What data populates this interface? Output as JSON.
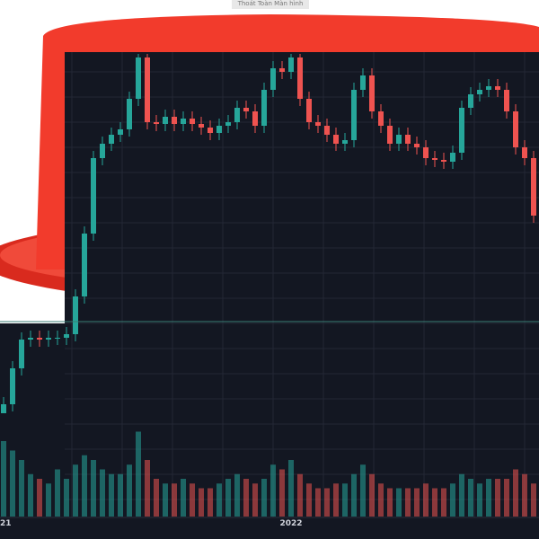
{
  "caption": "Thoát Toàn Màn hình",
  "chart_data": {
    "type": "candlestick",
    "categories": [
      "21",
      null,
      null,
      null,
      null,
      null,
      null,
      null,
      null,
      null,
      null,
      null,
      null,
      null,
      null,
      null,
      null,
      null,
      null,
      null,
      null,
      null,
      null,
      null,
      null,
      null,
      null,
      null,
      null,
      null,
      null,
      null,
      "2022",
      null,
      null,
      null,
      null,
      null,
      null,
      null,
      null,
      null,
      null,
      null,
      null,
      null,
      null,
      null,
      null,
      null,
      null,
      null,
      null,
      null,
      null,
      null,
      null,
      null,
      null,
      null
    ],
    "open": [
      0,
      2.5,
      12.5,
      20.5,
      21,
      20.5,
      21,
      21,
      22,
      32.5,
      50,
      71,
      75,
      77.5,
      79,
      87.5,
      99,
      81,
      80.5,
      82.5,
      80.5,
      82,
      80.5,
      79.5,
      78,
      80,
      81,
      85,
      84,
      80,
      90,
      96,
      95,
      99,
      87.5,
      81,
      80,
      77.5,
      75,
      76,
      90,
      94,
      84,
      80,
      75,
      77.5,
      75,
      74,
      71,
      70.5,
      70,
      72.5,
      85,
      88.75,
      90,
      91,
      90,
      84,
      74,
      71
    ],
    "high": [
      4.5,
      14.5,
      22.5,
      23,
      23,
      23,
      23,
      24,
      34.5,
      52,
      73,
      77,
      79.5,
      81,
      89.5,
      100,
      100,
      83,
      84.5,
      84.5,
      84,
      84,
      82.5,
      81.5,
      82,
      83,
      87,
      87,
      86,
      92,
      98,
      98,
      100,
      100,
      89.5,
      83,
      82,
      79.5,
      78,
      92,
      96,
      96,
      86,
      82,
      79.5,
      79.5,
      77,
      76,
      73,
      72.5,
      74.5,
      87,
      90.75,
      92,
      93,
      93,
      92,
      86,
      76,
      73
    ],
    "low": [
      0,
      0.5,
      10.5,
      18.5,
      18.5,
      18.5,
      19,
      19,
      20,
      30.5,
      48,
      69,
      73,
      75.5,
      77,
      85.5,
      79,
      78.5,
      78.5,
      78.5,
      78.5,
      78.5,
      77.5,
      76,
      76,
      78,
      79,
      82,
      78,
      78,
      88,
      93,
      93,
      85.5,
      79,
      78,
      75.5,
      73,
      73,
      74,
      88,
      82,
      78,
      73,
      73,
      73,
      72,
      69,
      68.5,
      68,
      68,
      70.5,
      83,
      86.75,
      88,
      88,
      82,
      72,
      69,
      53
    ],
    "close": [
      2.5,
      12.5,
      20.5,
      21,
      20.5,
      21,
      21,
      22,
      32.5,
      50,
      71,
      75,
      77.5,
      79,
      87.5,
      99,
      81,
      80.5,
      82.5,
      80.5,
      82,
      80.5,
      79.5,
      78,
      80,
      81,
      85,
      84,
      80,
      90,
      96,
      95,
      99,
      87.5,
      81,
      80,
      77.5,
      75,
      76,
      90,
      94,
      84,
      80,
      75,
      77.5,
      75,
      74,
      71,
      70.5,
      70,
      72.5,
      85,
      88.75,
      90,
      91,
      90,
      84,
      74,
      71,
      55
    ],
    "volume": [
      80,
      70,
      60,
      45,
      40,
      35,
      50,
      40,
      55,
      65,
      60,
      50,
      45,
      45,
      55,
      90,
      60,
      40,
      35,
      35,
      40,
      35,
      30,
      30,
      35,
      40,
      45,
      40,
      35,
      40,
      55,
      50,
      60,
      45,
      35,
      30,
      30,
      35,
      35,
      45,
      55,
      45,
      35,
      30,
      30,
      30,
      30,
      35,
      30,
      30,
      35,
      45,
      40,
      35,
      40,
      40,
      40,
      50,
      45,
      35
    ],
    "ylim": [
      0,
      100
    ],
    "volume_lim": [
      0,
      100
    ],
    "up_color": "#26a69a",
    "down_color": "#ef5350",
    "grid": true
  }
}
